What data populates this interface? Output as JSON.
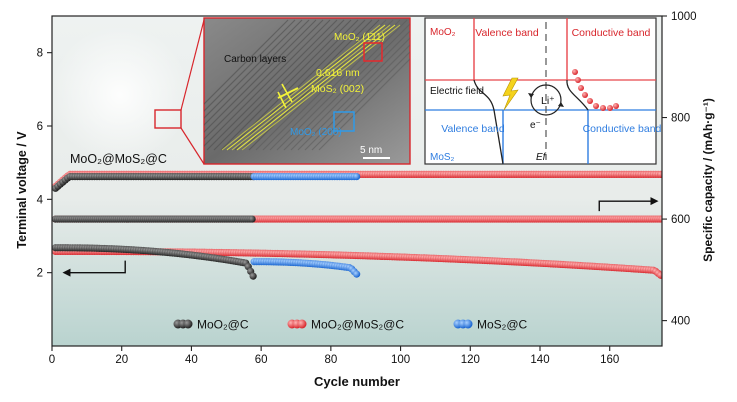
{
  "chart_data": {
    "type": "scatter",
    "xlabel": "Cycle number",
    "ylabel_left": "Terminal voltage / V",
    "ylabel_right": "Specific capacity / (mAh·g⁻¹)",
    "xlim": [
      0,
      175
    ],
    "ylim_left": [
      0,
      9.0
    ],
    "ylim_right": [
      350,
      1000
    ],
    "xticks": [
      0,
      20,
      40,
      60,
      80,
      100,
      120,
      140,
      160
    ],
    "yticks_left": [
      2,
      4,
      6,
      8
    ],
    "yticks_right": [
      400,
      600,
      800,
      1000
    ],
    "legend": [
      "MoO₂@C",
      "MoO₂@MoS₂@C",
      "MoS₂@C"
    ],
    "sample_label": "MoO₂@MoS₂@C",
    "series": [
      {
        "name": "MoO₂@C",
        "color": "#3a3a3a",
        "axis": "left",
        "cycles": [
          1,
          58
        ],
        "upper_voltage": {
          "start": 4.3,
          "plateau": 4.62
        },
        "lower_voltage": {
          "start": 2.68,
          "end": 2.22,
          "last": 1.85
        },
        "capacity_mAh_g": 600
      },
      {
        "name": "MoO₂@MoS₂@C",
        "color": "#e8484c",
        "axis": "left",
        "cycles": [
          1,
          175
        ],
        "upper_voltage": {
          "start": 4.35,
          "plateau": 4.68
        },
        "lower_voltage": {
          "start": 2.58,
          "end": 2.05,
          "last": 1.9
        },
        "capacity_mAh_g": 600
      },
      {
        "name": "MoS₂@C",
        "color": "#2f7de0",
        "axis": "left",
        "cycles": [
          58,
          88
        ],
        "upper_voltage": {
          "plateau": 4.62
        },
        "lower_voltage": {
          "start": 2.3,
          "end": 2.1,
          "last": 1.9
        },
        "capacity_mAh_g": 600
      }
    ],
    "annotations": {
      "left_arrow": {
        "from_x": 21,
        "to_x": 3,
        "y": 2.0,
        "axis": "left"
      },
      "right_arrow": {
        "from_x": 157,
        "to_x": 174,
        "y": 3.95,
        "axis": "left"
      }
    },
    "inset_tem": {
      "labels": [
        "Carbon layers",
        "0.616 nm",
        "MoS₂ (002)",
        "MoO₂ (1̄11)",
        "MoO₂ (200)",
        "5 nm"
      ]
    },
    "inset_band": {
      "labels": [
        "MoO₂",
        "Valence band",
        "Conductive band",
        "Electric field",
        "Li⁺",
        "e⁻",
        "Valence band",
        "Conductive band",
        "MoS₂",
        "Ef"
      ]
    }
  }
}
